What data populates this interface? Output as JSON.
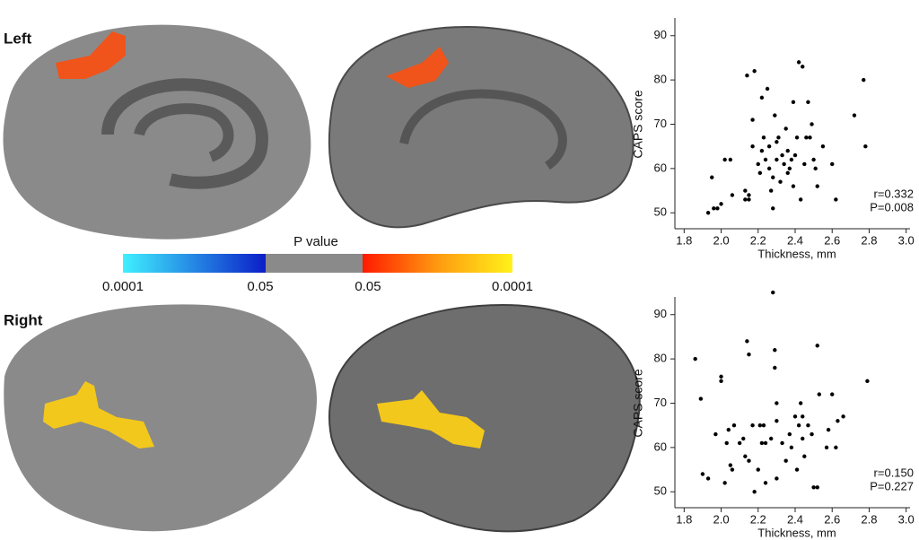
{
  "panels": {
    "left_label": "Left",
    "right_label": "Right"
  },
  "colorbar": {
    "title": "P value",
    "labels": [
      "0.0001",
      "0.05",
      "0.05",
      "0.0001"
    ]
  },
  "chart_data": [
    {
      "type": "scatter",
      "xlabel": "Thickness, mm",
      "ylabel": "CAPS score",
      "color": "#000000",
      "annotations": [
        "r=0.332",
        "P=0.008"
      ],
      "xlim": [
        1.75,
        3.05
      ],
      "xticks": [
        {
          "value": 1.8,
          "label": "1.8"
        },
        {
          "value": 2.0,
          "label": "2.0"
        },
        {
          "value": 2.2,
          "label": "2.2"
        },
        {
          "value": 2.4,
          "label": "2.4"
        },
        {
          "value": 2.6,
          "label": "2.6"
        },
        {
          "value": 2.8,
          "label": "2.8"
        },
        {
          "value": 3.0,
          "label": "3.0"
        }
      ],
      "ylim": [
        46,
        94
      ],
      "yticks": [
        50,
        60,
        70,
        80,
        90
      ],
      "x": [
        1.93,
        1.96,
        1.98,
        1.95,
        2.02,
        2.05,
        2.06,
        2.0,
        2.13,
        2.13,
        2.15,
        2.14,
        2.18,
        2.17,
        2.17,
        2.2,
        2.21,
        2.22,
        2.23,
        2.24,
        2.22,
        2.25,
        2.26,
        2.26,
        2.27,
        2.28,
        2.28,
        2.29,
        2.3,
        2.3,
        2.31,
        2.32,
        2.33,
        2.34,
        2.35,
        2.36,
        2.37,
        2.38,
        2.39,
        2.39,
        2.4,
        2.41,
        2.42,
        2.44,
        2.43,
        2.45,
        2.46,
        2.47,
        2.48,
        2.49,
        2.5,
        2.52,
        2.51,
        2.55,
        2.6,
        2.62,
        2.72,
        2.77,
        2.78,
        2.15,
        2.36
      ],
      "values": [
        50,
        51,
        51,
        58,
        62,
        62,
        54,
        52,
        55,
        53,
        54,
        81,
        82,
        71,
        65,
        61,
        59,
        64,
        67,
        62,
        76,
        78,
        65,
        60,
        55,
        58,
        51,
        72,
        66,
        62,
        67,
        57,
        63,
        61,
        69,
        64,
        60,
        62,
        56,
        75,
        63,
        67,
        84,
        83,
        53,
        61,
        67,
        75,
        67,
        70,
        62,
        56,
        60,
        65,
        61,
        53,
        72,
        80,
        65,
        53,
        59
      ]
    },
    {
      "type": "scatter",
      "xlabel": "Thickness, mm",
      "ylabel": "CAPS score",
      "color": "#000000",
      "annotations": [
        "r=0.150",
        "P=0.227"
      ],
      "xlim": [
        1.75,
        3.05
      ],
      "xticks": [
        {
          "value": 1.8,
          "label": "1.8"
        },
        {
          "value": 2.0,
          "label": "2.0"
        },
        {
          "value": 2.2,
          "label": "2.2"
        },
        {
          "value": 2.4,
          "label": "2.4"
        },
        {
          "value": 2.6,
          "label": "2.6"
        },
        {
          "value": 2.8,
          "label": "2.8"
        },
        {
          "value": 3.0,
          "label": "3.0"
        }
      ],
      "ylim": [
        46,
        94
      ],
      "yticks": [
        50,
        60,
        70,
        80,
        90
      ],
      "x": [
        1.86,
        1.89,
        1.9,
        1.93,
        1.97,
        2.0,
        2.0,
        2.02,
        2.03,
        2.04,
        2.05,
        2.06,
        2.07,
        2.1,
        2.12,
        2.13,
        2.14,
        2.15,
        2.15,
        2.18,
        2.17,
        2.2,
        2.21,
        2.22,
        2.23,
        2.24,
        2.24,
        2.27,
        2.28,
        2.29,
        2.29,
        2.3,
        2.3,
        2.3,
        2.33,
        2.35,
        2.37,
        2.38,
        2.4,
        2.41,
        2.42,
        2.43,
        2.44,
        2.44,
        2.45,
        2.47,
        2.49,
        2.5,
        2.52,
        2.52,
        2.53,
        2.57,
        2.58,
        2.6,
        2.62,
        2.63,
        2.66,
        2.79
      ],
      "values": [
        80,
        71,
        54,
        53,
        63,
        75,
        76,
        52,
        61,
        64,
        56,
        55,
        65,
        61,
        62,
        58,
        84,
        81,
        57,
        50,
        65,
        55,
        65,
        61,
        65,
        61,
        52,
        62,
        95,
        82,
        78,
        70,
        66,
        53,
        61,
        57,
        63,
        60,
        67,
        55,
        65,
        70,
        62,
        67,
        58,
        65,
        63,
        51,
        51,
        83,
        72,
        60,
        64,
        72,
        60,
        66,
        67,
        75
      ]
    }
  ]
}
